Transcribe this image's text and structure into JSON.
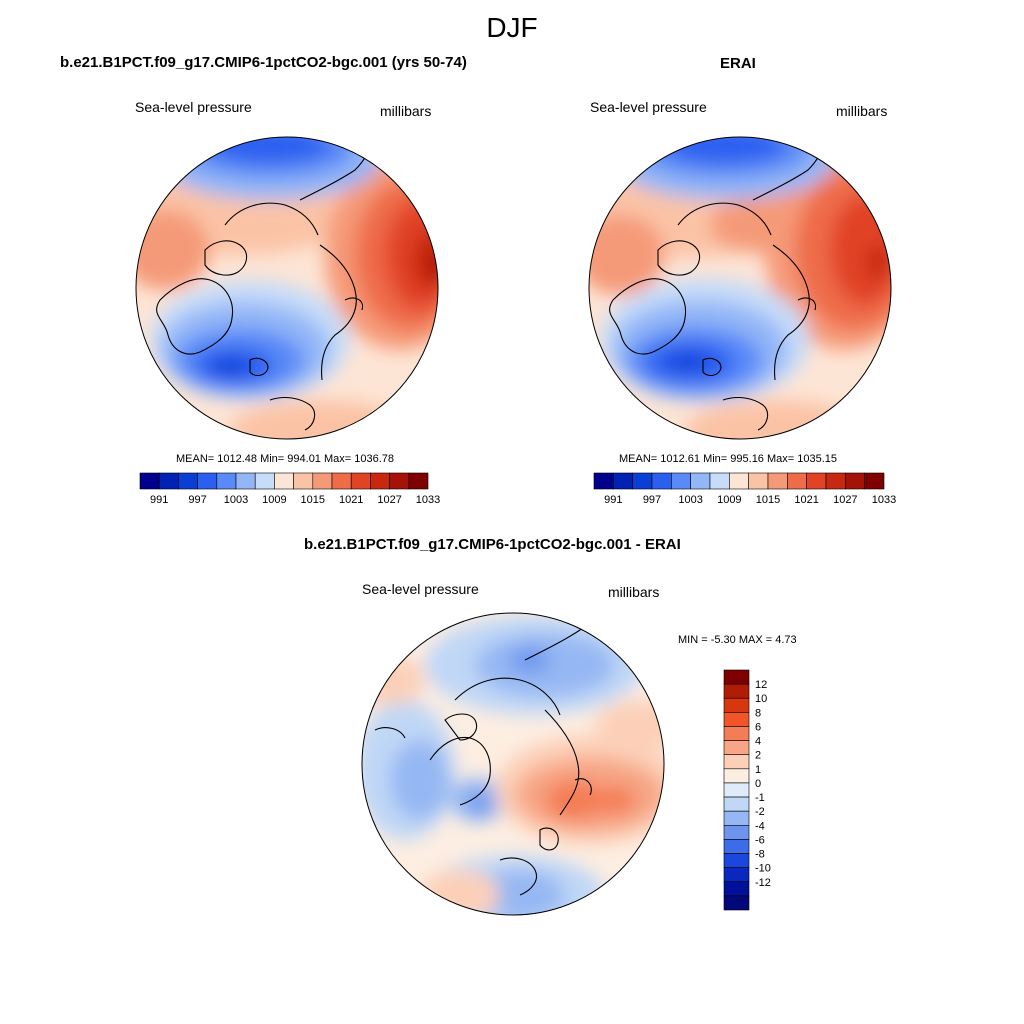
{
  "title": "DJF",
  "panels": [
    {
      "id": "model",
      "title": "b.e21.B1PCT.f09_g17.CMIP6-1pctCO2-bgc.001 (yrs 50-74)",
      "left_label": "Sea-level pressure",
      "right_label": "millibars",
      "stats": "MEAN= 1012.48  Min= 994.01  Max= 1036.78"
    },
    {
      "id": "obs",
      "title": "ERAI",
      "left_label": "Sea-level pressure",
      "right_label": "millibars",
      "stats": "MEAN= 1012.61  Min= 995.16  Max= 1035.15"
    },
    {
      "id": "diff",
      "title": "b.e21.B1PCT.f09_g17.CMIP6-1pctCO2-bgc.001 - ERAI",
      "left_label": "Sea-level pressure",
      "right_label": "millibars",
      "stats": "MIN =  -5.30 MAX =   4.73"
    }
  ],
  "abs_colorbar": {
    "colors": [
      "#00008c",
      "#0022b4",
      "#0a3fd6",
      "#2a5ff0",
      "#5a8af7",
      "#93b6f7",
      "#c6dcf9",
      "#fde5d5",
      "#fbc3a6",
      "#f59a78",
      "#ee6c48",
      "#e14325",
      "#c8280f",
      "#a51208",
      "#7f0000"
    ],
    "ticks": [
      "991",
      "997",
      "1003",
      "1009",
      "1015",
      "1021",
      "1027",
      "1033"
    ]
  },
  "diff_colorbar": {
    "colors": [
      "#7f0000",
      "#b01c06",
      "#d8360f",
      "#f25527",
      "#f47d55",
      "#f7a585",
      "#fcd0b8",
      "#fdeee2",
      "#deebf9",
      "#c0d7f6",
      "#95b7f3",
      "#6d95ee",
      "#3d6ce9",
      "#1a47dd",
      "#0a28bf",
      "#00109a",
      "#00087a"
    ],
    "ticks": [
      "12",
      "10",
      "8",
      "6",
      "4",
      "2",
      "1",
      "0",
      "-1",
      "-2",
      "-4",
      "-6",
      "-8",
      "-10",
      "-12"
    ]
  },
  "chart_data": [
    {
      "type": "heatmap",
      "projection": "north polar stereographic",
      "title": "b.e21.B1PCT.f09_g17.CMIP6-1pctCO2-bgc.001 (yrs 50-74)",
      "variable": "Sea-level pressure",
      "units": "millibars",
      "mean": 1012.48,
      "min": 994.01,
      "max": 1036.78,
      "contour_levels": [
        991,
        994,
        997,
        1000,
        1003,
        1006,
        1009,
        1012,
        1015,
        1018,
        1021,
        1024,
        1027,
        1030,
        1033
      ]
    },
    {
      "type": "heatmap",
      "projection": "north polar stereographic",
      "title": "ERAI",
      "variable": "Sea-level pressure",
      "units": "millibars",
      "mean": 1012.61,
      "min": 995.16,
      "max": 1035.15,
      "contour_levels": [
        991,
        994,
        997,
        1000,
        1003,
        1006,
        1009,
        1012,
        1015,
        1018,
        1021,
        1024,
        1027,
        1030,
        1033
      ]
    },
    {
      "type": "heatmap",
      "projection": "north polar stereographic",
      "title": "b.e21.B1PCT.f09_g17.CMIP6-1pctCO2-bgc.001 - ERAI",
      "variable": "Sea-level pressure",
      "units": "millibars",
      "min": -5.3,
      "max": 4.73,
      "contour_levels": [
        -12,
        -10,
        -8,
        -6,
        -4,
        -2,
        -1,
        0,
        1,
        2,
        4,
        6,
        8,
        10,
        12
      ]
    }
  ]
}
